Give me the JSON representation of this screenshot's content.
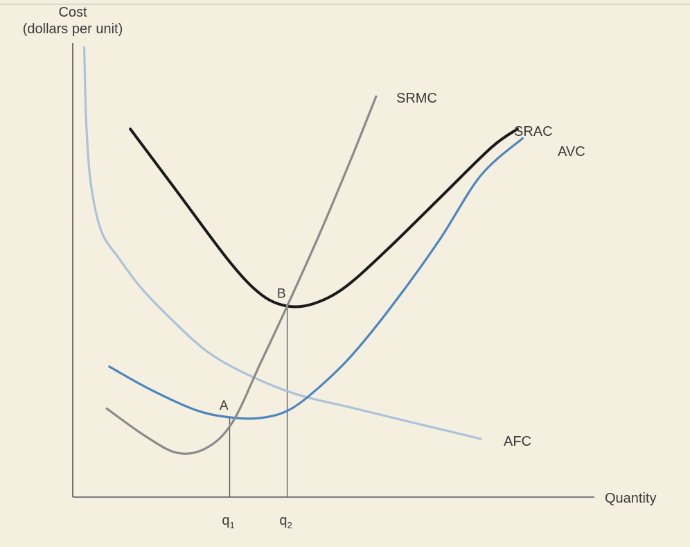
{
  "chart_data": {
    "type": "line",
    "title": "",
    "ylabel": "Cost\n(dollars per unit)",
    "xlabel": "Quantity",
    "xlim": [
      0,
      10
    ],
    "ylim": [
      0,
      10
    ],
    "grid": false,
    "legend": "none",
    "series": [
      {
        "name": "AFC",
        "color": "#a9c3d9",
        "x": [
          0.22,
          0.26,
          0.35,
          0.55,
          0.9,
          1.3,
          1.9,
          2.6,
          3.4,
          4.3,
          5.4,
          6.5,
          7.8
        ],
        "y": [
          9.65,
          8.0,
          6.7,
          5.7,
          5.1,
          4.5,
          3.8,
          3.1,
          2.6,
          2.2,
          1.9,
          1.6,
          1.25
        ]
      },
      {
        "name": "AVC",
        "color": "#4a86bf",
        "x": [
          0.7,
          1.5,
          2.4,
          3.1,
          3.6,
          4.1,
          4.6,
          5.3,
          6.1,
          7.0,
          7.8,
          8.6
        ],
        "y": [
          2.8,
          2.3,
          1.85,
          1.7,
          1.7,
          1.85,
          2.25,
          3.0,
          4.1,
          5.5,
          6.9,
          7.7
        ]
      },
      {
        "name": "SRAC",
        "color": "#1a1a1a",
        "x": [
          1.1,
          2.0,
          3.0,
          3.6,
          4.1,
          4.6,
          5.2,
          6.0,
          7.0,
          8.0,
          8.5
        ],
        "y": [
          7.9,
          6.55,
          5.05,
          4.35,
          4.1,
          4.15,
          4.5,
          5.3,
          6.4,
          7.5,
          7.9
        ]
      },
      {
        "name": "SRMC",
        "color": "#8a8a8a",
        "x": [
          0.65,
          1.4,
          2.0,
          2.55,
          3.05,
          3.6,
          4.1,
          4.7,
          5.3,
          5.8
        ],
        "y": [
          1.9,
          1.3,
          0.95,
          1.05,
          1.6,
          2.9,
          4.1,
          5.6,
          7.2,
          8.6
        ]
      }
    ],
    "annotations": [
      {
        "text": "A",
        "x": 3.0,
        "y": 1.7
      },
      {
        "text": "B",
        "x": 4.1,
        "y": 4.1
      }
    ],
    "vlines": [
      {
        "x": 3.0,
        "y": 1.7
      },
      {
        "x": 4.1,
        "y": 4.1
      }
    ],
    "xticks": [
      {
        "base": "q",
        "sub": "1",
        "x": 3.0
      },
      {
        "base": "q",
        "sub": "2",
        "x": 4.1
      }
    ]
  }
}
